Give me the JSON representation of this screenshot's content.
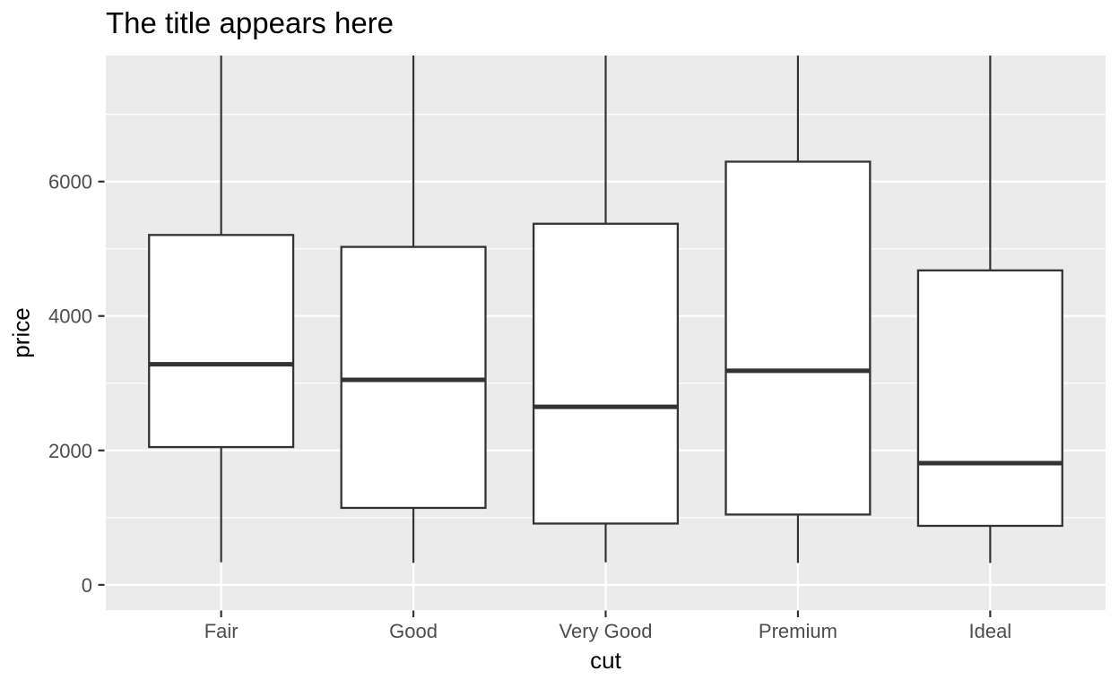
{
  "chart_data": {
    "type": "boxplot",
    "title": "The title appears here",
    "xlabel": "cut",
    "ylabel": "price",
    "categories": [
      "Fair",
      "Good",
      "Very Good",
      "Premium",
      "Ideal"
    ],
    "stats": [
      {
        "category": "Fair",
        "whisker_low": 337,
        "q1": 2050,
        "median": 3282,
        "q3": 5205.5,
        "whisker_high_clipped": true
      },
      {
        "category": "Good",
        "whisker_low": 327,
        "q1": 1145,
        "median": 3050.5,
        "q3": 5028,
        "whisker_high_clipped": true
      },
      {
        "category": "Very Good",
        "whisker_low": 336,
        "q1": 912,
        "median": 2648,
        "q3": 5372.75,
        "whisker_high_clipped": true
      },
      {
        "category": "Premium",
        "whisker_low": 326,
        "q1": 1046,
        "median": 3185,
        "q3": 6296,
        "whisker_high_clipped": true
      },
      {
        "category": "Ideal",
        "whisker_low": 326,
        "q1": 878,
        "median": 1810,
        "q3": 4678.5,
        "whisker_high_clipped": true
      }
    ],
    "outliers_shown": false,
    "y_ticks": [
      0,
      2000,
      4000,
      6000
    ],
    "y_minor_ticks": [
      1000,
      3000,
      5000,
      7000
    ],
    "y_range_visible": [
      -375,
      7875
    ],
    "grid": true,
    "legend": false,
    "style": {
      "panel_bg": "#EBEBEB",
      "grid_color": "#FFFFFF",
      "box_stroke": "#333333",
      "box_fill": "#FFFFFF",
      "tick_color": "#333333",
      "tick_label_color": "#4D4D4D",
      "title_color": "#000000"
    }
  }
}
